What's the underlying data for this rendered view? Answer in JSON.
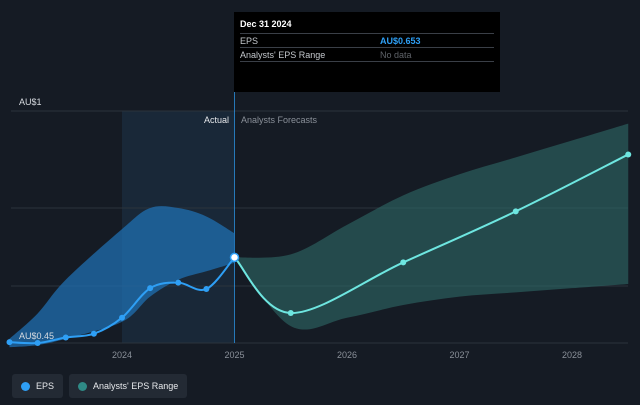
{
  "tooltip": {
    "date": "Dec 31 2024",
    "rows": [
      {
        "label": "EPS",
        "value": "AU$0.653"
      },
      {
        "label": "Analysts' EPS Range",
        "value": "No data"
      }
    ]
  },
  "legend": [
    {
      "label": "EPS",
      "color": "#2e9ff5"
    },
    {
      "label": "Analysts' EPS Range",
      "color": "#2f8a86"
    }
  ],
  "chart_data": {
    "type": "line",
    "y_top_label": "AU$1",
    "y_bottom_label": "AU$0.45",
    "ylim": [
      0.45,
      1.0
    ],
    "x_ticks": [
      "2024",
      "2025",
      "2026",
      "2027",
      "2028"
    ],
    "section_labels": {
      "actual": "Actual",
      "forecast": "Analysts Forecasts"
    },
    "actual_divider": 2025.0,
    "highlight_start": 2024.0,
    "colors": {
      "eps_line": "#2e9ff5",
      "forecast_line": "#6ee6e0",
      "actual_band": "#1f6fb0",
      "forecast_band": "#2f6b67"
    },
    "series": [
      {
        "name": "EPS",
        "points": [
          [
            2023.0,
            0.452
          ],
          [
            2023.25,
            0.45
          ],
          [
            2023.5,
            0.463
          ],
          [
            2023.75,
            0.472
          ],
          [
            2024.0,
            0.51
          ],
          [
            2024.25,
            0.58
          ],
          [
            2024.5,
            0.593
          ],
          [
            2024.75,
            0.578
          ],
          [
            2025.0,
            0.653
          ]
        ]
      },
      {
        "name": "EPS Forecast",
        "points": [
          [
            2025.0,
            0.653
          ],
          [
            2025.5,
            0.521
          ],
          [
            2026.5,
            0.641
          ],
          [
            2027.5,
            0.762
          ],
          [
            2028.5,
            0.897
          ]
        ]
      }
    ],
    "actual_range": {
      "x": [
        2023.0,
        2023.25,
        2023.5,
        2024.0,
        2024.25,
        2024.5,
        2024.75,
        2025.0
      ],
      "upper": [
        0.46,
        0.52,
        0.6,
        0.72,
        0.77,
        0.77,
        0.75,
        0.71
      ],
      "lower": [
        0.44,
        0.445,
        0.46,
        0.5,
        0.56,
        0.6,
        0.62,
        0.64
      ]
    },
    "forecast_range": {
      "x": [
        2025.0,
        2025.5,
        2026.0,
        2026.5,
        2027.0,
        2027.5,
        2028.0,
        2028.5
      ],
      "upper": [
        0.653,
        0.66,
        0.73,
        0.8,
        0.85,
        0.89,
        0.93,
        0.97
      ],
      "lower": [
        0.653,
        0.49,
        0.51,
        0.54,
        0.56,
        0.57,
        0.58,
        0.59
      ]
    }
  }
}
